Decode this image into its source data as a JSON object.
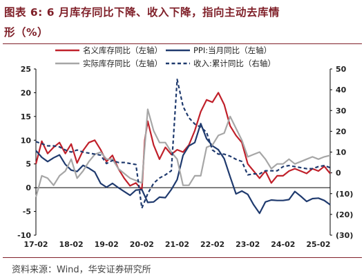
{
  "title": {
    "line1": "图表 6: 6 月库存同比下降、收入下降，指向主动去库情",
    "line2": "形（%）"
  },
  "source": "资料来源：Wind，华安证券研究所",
  "colors": {
    "nominal": "#c0202a",
    "ppi": "#1f3a6e",
    "real": "#a6a6a6",
    "revenue": "#1f3a6e",
    "title": "#7f1f28"
  },
  "chart_data": {
    "type": "line",
    "x_range": [
      "2017-02",
      "2025-06"
    ],
    "xticks": [
      "17-02",
      "18-02",
      "19-02",
      "20-02",
      "21-02",
      "22-02",
      "23-02",
      "24-02",
      "25-02"
    ],
    "y_left": {
      "range": [
        -10,
        25
      ],
      "ticks": [
        "-10",
        "-5",
        "0",
        "5",
        "10",
        "15",
        "20",
        "25"
      ]
    },
    "y_right": {
      "range": [
        -30,
        50
      ],
      "ticks": [
        "(30)",
        "(20)",
        "(10)",
        "0",
        "10",
        "20",
        "30",
        "40",
        "50"
      ]
    },
    "legend_position": "top",
    "series": [
      {
        "key": "nominal",
        "name": "名义库存同比（左轴）",
        "axis": "left",
        "style": "solid",
        "points": [
          [
            "2017-02",
            5.0
          ],
          [
            "2017-04",
            9.8
          ],
          [
            "2017-06",
            7.2
          ],
          [
            "2017-08",
            8.5
          ],
          [
            "2017-10",
            9.5
          ],
          [
            "2017-12",
            7.2
          ],
          [
            "2018-02",
            9.2
          ],
          [
            "2018-04",
            5.2
          ],
          [
            "2018-06",
            7.8
          ],
          [
            "2018-08",
            9.5
          ],
          [
            "2018-10",
            10.0
          ],
          [
            "2018-12",
            8.0
          ],
          [
            "2019-02",
            5.5
          ],
          [
            "2019-04",
            6.8
          ],
          [
            "2019-06",
            4.0
          ],
          [
            "2019-08",
            2.0
          ],
          [
            "2019-10",
            0.4
          ],
          [
            "2019-12",
            1.0
          ],
          [
            "2020-02",
            -0.5
          ],
          [
            "2020-03",
            10.0
          ],
          [
            "2020-04",
            14.0
          ],
          [
            "2020-06",
            9.0
          ],
          [
            "2020-08",
            6.0
          ],
          [
            "2020-10",
            8.5
          ],
          [
            "2020-12",
            7.0
          ],
          [
            "2021-02",
            8.0
          ],
          [
            "2021-04",
            7.5
          ],
          [
            "2021-06",
            9.0
          ],
          [
            "2021-08",
            12.0
          ],
          [
            "2021-10",
            16.0
          ],
          [
            "2021-12",
            18.5
          ],
          [
            "2022-02",
            18.0
          ],
          [
            "2022-04",
            20.0
          ],
          [
            "2022-06",
            17.5
          ],
          [
            "2022-08",
            13.0
          ],
          [
            "2022-10",
            11.0
          ],
          [
            "2022-12",
            9.5
          ],
          [
            "2023-02",
            5.0
          ],
          [
            "2023-04",
            3.5
          ],
          [
            "2023-06",
            2.0
          ],
          [
            "2023-08",
            3.5
          ],
          [
            "2023-10",
            1.0
          ],
          [
            "2023-12",
            2.5
          ],
          [
            "2024-02",
            2.5
          ],
          [
            "2024-04",
            3.5
          ],
          [
            "2024-06",
            4.0
          ],
          [
            "2024-08",
            3.5
          ],
          [
            "2024-10",
            3.0
          ],
          [
            "2024-12",
            4.0
          ],
          [
            "2025-02",
            3.5
          ],
          [
            "2025-04",
            4.5
          ],
          [
            "2025-06",
            3.0
          ]
        ]
      },
      {
        "key": "ppi",
        "name": "PPI:当月同比（左轴）",
        "axis": "left",
        "style": "solid",
        "points": [
          [
            "2017-02",
            7.8
          ],
          [
            "2017-04",
            6.4
          ],
          [
            "2017-06",
            5.5
          ],
          [
            "2017-08",
            6.3
          ],
          [
            "2017-10",
            6.9
          ],
          [
            "2017-12",
            4.9
          ],
          [
            "2018-02",
            3.7
          ],
          [
            "2018-04",
            3.4
          ],
          [
            "2018-06",
            4.7
          ],
          [
            "2018-08",
            4.1
          ],
          [
            "2018-10",
            3.3
          ],
          [
            "2018-12",
            0.9
          ],
          [
            "2019-02",
            0.1
          ],
          [
            "2019-04",
            0.9
          ],
          [
            "2019-06",
            0.0
          ],
          [
            "2019-08",
            -0.8
          ],
          [
            "2019-10",
            -1.6
          ],
          [
            "2019-12",
            -0.5
          ],
          [
            "2020-02",
            -0.4
          ],
          [
            "2020-04",
            -3.1
          ],
          [
            "2020-06",
            -3.0
          ],
          [
            "2020-08",
            -2.0
          ],
          [
            "2020-10",
            -2.1
          ],
          [
            "2020-12",
            -0.4
          ],
          [
            "2021-02",
            1.7
          ],
          [
            "2021-04",
            6.8
          ],
          [
            "2021-06",
            8.8
          ],
          [
            "2021-08",
            9.5
          ],
          [
            "2021-10",
            13.5
          ],
          [
            "2021-12",
            10.3
          ],
          [
            "2022-02",
            8.8
          ],
          [
            "2022-04",
            8.0
          ],
          [
            "2022-06",
            6.1
          ],
          [
            "2022-08",
            2.3
          ],
          [
            "2022-10",
            -1.3
          ],
          [
            "2022-12",
            -0.7
          ],
          [
            "2023-02",
            -1.4
          ],
          [
            "2023-04",
            -3.6
          ],
          [
            "2023-06",
            -5.4
          ],
          [
            "2023-08",
            -3.0
          ],
          [
            "2023-10",
            -2.6
          ],
          [
            "2023-12",
            -2.7
          ],
          [
            "2024-02",
            -2.7
          ],
          [
            "2024-04",
            -2.5
          ],
          [
            "2024-06",
            -0.8
          ],
          [
            "2024-08",
            -1.8
          ],
          [
            "2024-10",
            -2.9
          ],
          [
            "2024-12",
            -2.3
          ],
          [
            "2025-02",
            -2.2
          ],
          [
            "2025-04",
            -2.7
          ],
          [
            "2025-06",
            -3.6
          ]
        ]
      },
      {
        "key": "real",
        "name": "实际库存同比（左轴）",
        "axis": "left",
        "style": "solid",
        "points": [
          [
            "2017-02",
            -2.0
          ],
          [
            "2017-04",
            2.5
          ],
          [
            "2017-06",
            2.0
          ],
          [
            "2017-08",
            0.5
          ],
          [
            "2017-10",
            2.5
          ],
          [
            "2017-12",
            3.5
          ],
          [
            "2018-02",
            6.0
          ],
          [
            "2018-04",
            2.0
          ],
          [
            "2018-06",
            3.5
          ],
          [
            "2018-08",
            5.5
          ],
          [
            "2018-10",
            7.0
          ],
          [
            "2018-12",
            7.5
          ],
          [
            "2019-02",
            6.0
          ],
          [
            "2019-04",
            6.0
          ],
          [
            "2019-06",
            4.0
          ],
          [
            "2019-08",
            3.0
          ],
          [
            "2019-10",
            2.0
          ],
          [
            "2019-12",
            1.5
          ],
          [
            "2020-02",
            1.0
          ],
          [
            "2020-04",
            16.5
          ],
          [
            "2020-06",
            12.0
          ],
          [
            "2020-08",
            9.5
          ],
          [
            "2020-10",
            9.5
          ],
          [
            "2020-12",
            7.5
          ],
          [
            "2021-02",
            6.0
          ],
          [
            "2021-04",
            0.5
          ],
          [
            "2021-06",
            0.5
          ],
          [
            "2021-08",
            2.5
          ],
          [
            "2021-10",
            2.5
          ],
          [
            "2021-12",
            8.5
          ],
          [
            "2022-02",
            9.0
          ],
          [
            "2022-04",
            11.0
          ],
          [
            "2022-06",
            11.5
          ],
          [
            "2022-08",
            15.0
          ],
          [
            "2022-10",
            12.5
          ],
          [
            "2022-12",
            10.0
          ],
          [
            "2023-02",
            6.5
          ],
          [
            "2023-04",
            7.0
          ],
          [
            "2023-06",
            7.5
          ],
          [
            "2023-08",
            6.0
          ],
          [
            "2023-10",
            4.0
          ],
          [
            "2023-12",
            5.0
          ],
          [
            "2024-02",
            5.0
          ],
          [
            "2024-04",
            6.0
          ],
          [
            "2024-06",
            5.0
          ],
          [
            "2024-08",
            5.5
          ],
          [
            "2024-10",
            6.0
          ],
          [
            "2024-12",
            6.5
          ],
          [
            "2025-02",
            6.0
          ],
          [
            "2025-04",
            6.5
          ],
          [
            "2025-06",
            6.8
          ]
        ]
      },
      {
        "key": "revenue",
        "name": "收入:累计同比（右轴）",
        "axis": "right",
        "style": "dashed",
        "points": [
          [
            "2017-02",
            15.0
          ],
          [
            "2017-04",
            14.0
          ],
          [
            "2017-06",
            13.0
          ],
          [
            "2017-08",
            13.0
          ],
          [
            "2017-10",
            12.5
          ],
          [
            "2017-12",
            11.0
          ],
          [
            "2018-02",
            10.0
          ],
          [
            "2018-04",
            11.0
          ],
          [
            "2018-06",
            10.0
          ],
          [
            "2018-08",
            9.5
          ],
          [
            "2018-10",
            9.0
          ],
          [
            "2018-12",
            8.5
          ],
          [
            "2019-02",
            4.5
          ],
          [
            "2019-04",
            6.0
          ],
          [
            "2019-06",
            5.0
          ],
          [
            "2019-08",
            5.0
          ],
          [
            "2019-10",
            4.5
          ],
          [
            "2019-12",
            4.0
          ],
          [
            "2020-02",
            -17.0
          ],
          [
            "2020-04",
            -10.0
          ],
          [
            "2020-06",
            -5.0
          ],
          [
            "2020-08",
            -2.5
          ],
          [
            "2020-10",
            -1.0
          ],
          [
            "2020-12",
            1.0
          ],
          [
            "2021-02",
            45.0
          ],
          [
            "2021-04",
            32.0
          ],
          [
            "2021-06",
            26.5
          ],
          [
            "2021-08",
            23.5
          ],
          [
            "2021-10",
            22.0
          ],
          [
            "2021-12",
            19.5
          ],
          [
            "2022-02",
            11.0
          ],
          [
            "2022-04",
            9.0
          ],
          [
            "2022-06",
            9.0
          ],
          [
            "2022-08",
            8.0
          ],
          [
            "2022-10",
            6.5
          ],
          [
            "2022-12",
            5.5
          ],
          [
            "2023-02",
            -1.0
          ],
          [
            "2023-04",
            -0.5
          ],
          [
            "2023-06",
            -0.5
          ],
          [
            "2023-08",
            1.0
          ],
          [
            "2023-10",
            1.0
          ],
          [
            "2023-12",
            1.0
          ],
          [
            "2024-02",
            3.0
          ],
          [
            "2024-04",
            3.5
          ],
          [
            "2024-06",
            3.0
          ],
          [
            "2024-08",
            2.5
          ],
          [
            "2024-10",
            2.0
          ],
          [
            "2024-12",
            2.0
          ],
          [
            "2025-02",
            3.0
          ],
          [
            "2025-04",
            3.5
          ],
          [
            "2025-06",
            2.5
          ]
        ]
      }
    ]
  }
}
